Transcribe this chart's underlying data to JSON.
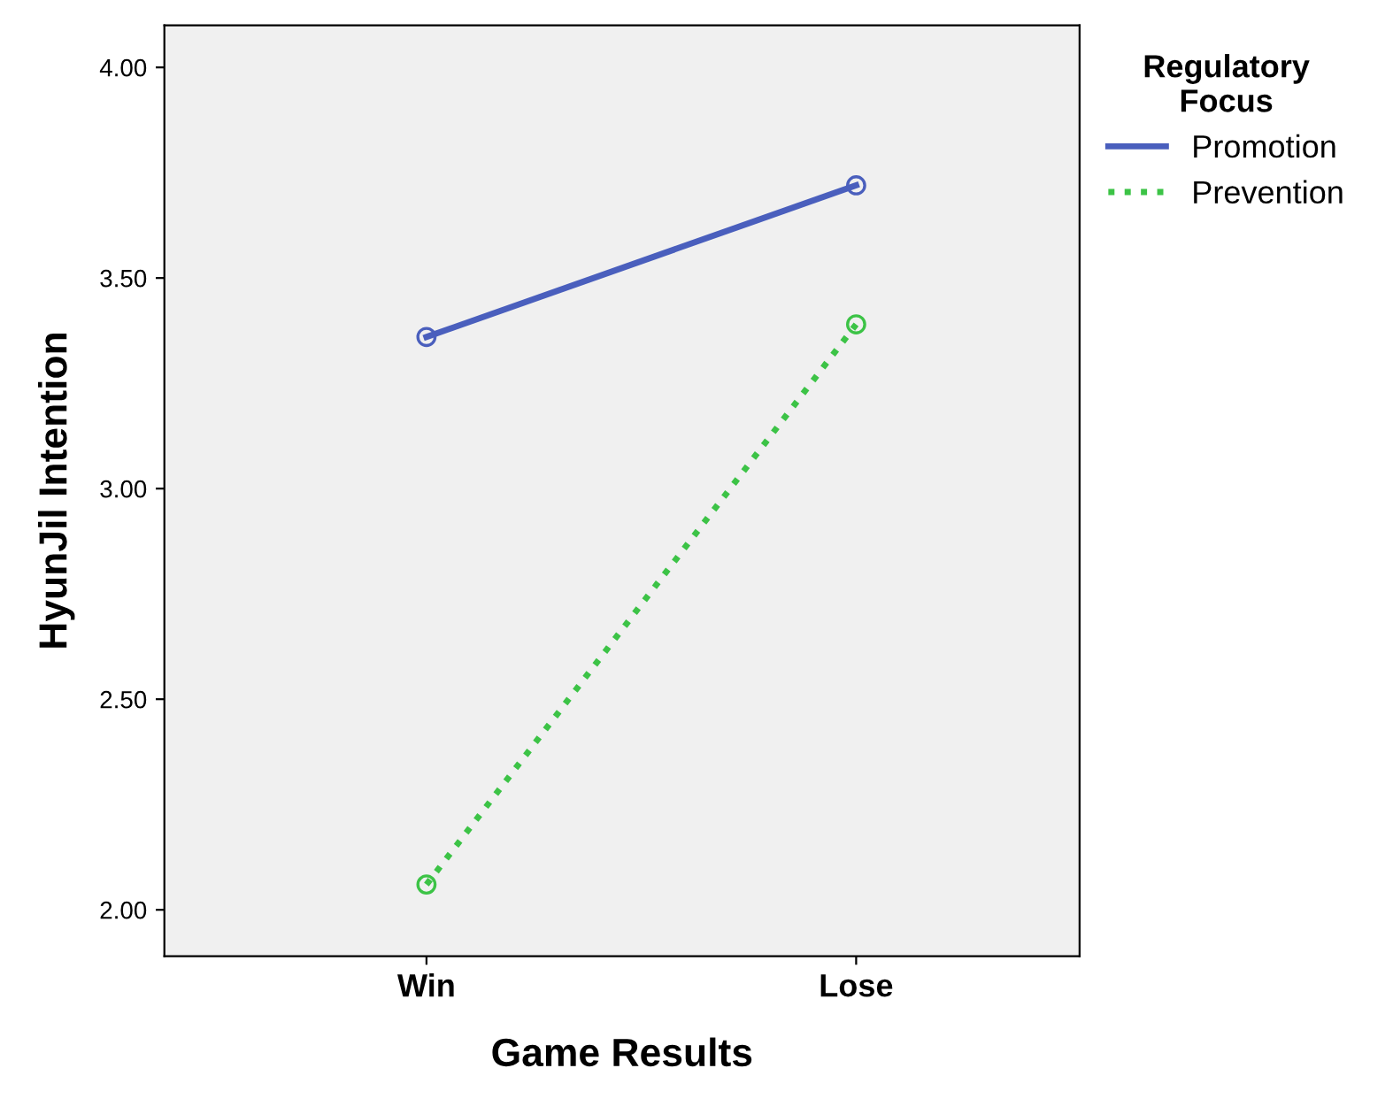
{
  "chart_data": {
    "type": "line",
    "xlabel": "Game Results",
    "ylabel": "HyunJil Intention",
    "legend_title": "Regulatory\nFocus",
    "categories": [
      "Win",
      "Lose"
    ],
    "series": [
      {
        "name": "Promotion",
        "color": "#4a5fbd",
        "values": [
          3.36,
          3.72
        ],
        "line_style": "solid"
      },
      {
        "name": "Prevention",
        "color": "#3cc346",
        "values": [
          2.06,
          3.39
        ],
        "line_style": "dotted"
      }
    ],
    "ylim": [
      1.89,
      4.1
    ],
    "yticks": [
      {
        "value": 2,
        "label": "2.00"
      },
      {
        "value": 2.5,
        "label": "2.50"
      },
      {
        "value": 3,
        "label": "3.00"
      },
      {
        "value": 3.5,
        "label": "3.50"
      },
      {
        "value": 4,
        "label": "4.00"
      }
    ],
    "marker": "circle",
    "grid": false,
    "legend": "top right"
  }
}
